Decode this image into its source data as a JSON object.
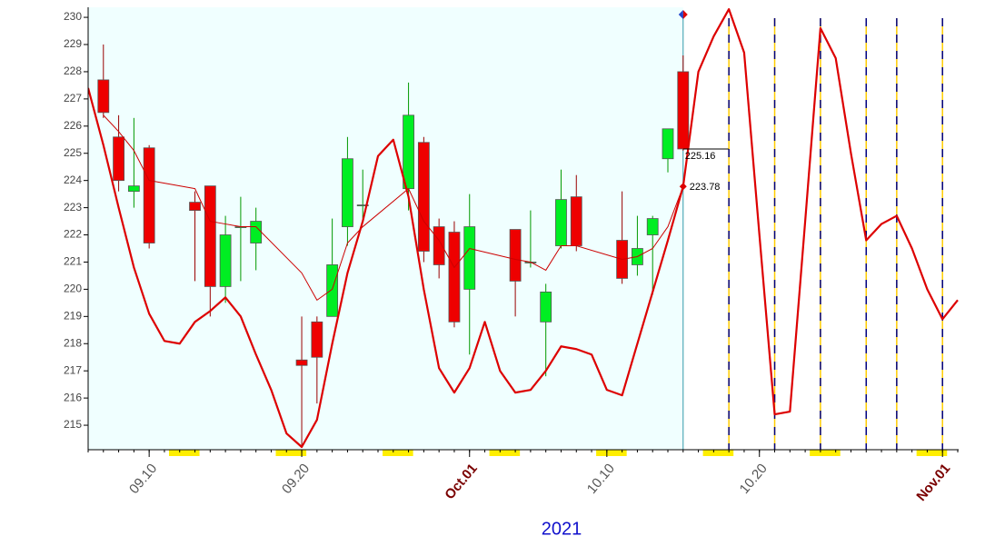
{
  "chart_data": {
    "type": "candlestick",
    "xlabel": "2021",
    "xlim": [
      "2021-09-06",
      "2021-11-02"
    ],
    "xticks": [
      {
        "value": "2021-09-10",
        "label": "09.10"
      },
      {
        "value": "2021-09-20",
        "label": "09.20"
      },
      {
        "value": "2021-10-01",
        "label": "Oct.01"
      },
      {
        "value": "2021-10-10",
        "label": "10.10"
      },
      {
        "value": "2021-10-20",
        "label": "10.20"
      },
      {
        "value": "2021-11-01",
        "label": "Nov.01"
      }
    ],
    "ylim": [
      214.1,
      230.37
    ],
    "yticks": [
      215,
      216,
      217,
      218,
      219,
      220,
      221,
      222,
      223,
      224,
      225,
      226,
      227,
      228,
      229,
      230
    ],
    "cursor": "2021-10-15",
    "vlines": [
      "2021-10-18",
      "2021-10-21",
      "2021-10-24",
      "2021-10-27",
      "2021-10-29",
      "2021-11-01"
    ],
    "up_color": "#00ee22",
    "down_color": "#ee0000",
    "candles": {
      "x": [
        "2021-09-07",
        "2021-09-08",
        "2021-09-09",
        "2021-09-10",
        "2021-09-13",
        "2021-09-14",
        "2021-09-15",
        "2021-09-16",
        "2021-09-17",
        "2021-09-20",
        "2021-09-21",
        "2021-09-22",
        "2021-09-23",
        "2021-09-24",
        "2021-09-27",
        "2021-09-28",
        "2021-09-29",
        "2021-09-30",
        "2021-10-01",
        "2021-10-04",
        "2021-10-05",
        "2021-10-06",
        "2021-10-07",
        "2021-10-08",
        "2021-10-11",
        "2021-10-12",
        "2021-10-13",
        "2021-10-14",
        "2021-10-15"
      ],
      "open": [
        227.7,
        225.6,
        223.6,
        225.2,
        223.2,
        223.8,
        220.1,
        222.3,
        221.7,
        217.4,
        218.8,
        219.0,
        222.3,
        223.1,
        223.7,
        225.4,
        222.3,
        222.1,
        220.0,
        222.2,
        221.0,
        218.8,
        221.6,
        223.4,
        221.8,
        220.9,
        222.0,
        224.8,
        228.0
      ],
      "high": [
        229.0,
        226.4,
        226.3,
        225.3,
        223.6,
        223.8,
        222.7,
        223.4,
        223.0,
        219.0,
        219.0,
        222.6,
        225.6,
        224.4,
        227.6,
        225.6,
        222.6,
        222.5,
        223.5,
        222.2,
        222.9,
        220.2,
        224.4,
        224.2,
        223.6,
        222.7,
        222.7,
        225.9,
        228.6
      ],
      "low": [
        226.3,
        223.6,
        223.0,
        221.5,
        220.3,
        219.0,
        219.5,
        220.3,
        220.7,
        214.2,
        215.8,
        219.0,
        221.6,
        222.6,
        222.9,
        221.0,
        220.4,
        218.6,
        217.6,
        219.0,
        220.8,
        216.8,
        221.5,
        221.4,
        220.2,
        220.5,
        219.8,
        224.3,
        225.1
      ],
      "close": [
        226.5,
        224.0,
        223.8,
        221.7,
        222.9,
        220.1,
        222.0,
        222.3,
        222.5,
        217.2,
        217.5,
        220.9,
        224.8,
        223.1,
        226.4,
        221.4,
        220.9,
        218.8,
        222.3,
        220.3,
        221.0,
        219.9,
        223.3,
        221.6,
        220.4,
        221.5,
        222.6,
        225.9,
        225.16
      ]
    },
    "series": [
      {
        "color": "#cc0000",
        "width": 1,
        "x": [
          "2021-09-07",
          "2021-09-08",
          "2021-09-09",
          "2021-09-10",
          "2021-09-13",
          "2021-09-14",
          "2021-09-15",
          "2021-09-16",
          "2021-09-17",
          "2021-09-20",
          "2021-09-21",
          "2021-09-22",
          "2021-09-23",
          "2021-09-24",
          "2021-09-27",
          "2021-09-28",
          "2021-09-29",
          "2021-09-30",
          "2021-10-01",
          "2021-10-04",
          "2021-10-05",
          "2021-10-06",
          "2021-10-07",
          "2021-10-08",
          "2021-10-11",
          "2021-10-12",
          "2021-10-13",
          "2021-10-14",
          "2021-10-15"
        ],
        "values": [
          226.4,
          225.8,
          225.1,
          224.0,
          223.7,
          222.5,
          222.4,
          222.3,
          222.3,
          220.6,
          219.6,
          220.0,
          221.7,
          222.3,
          223.7,
          222.5,
          221.8,
          220.8,
          221.5,
          221.1,
          221.0,
          220.7,
          221.6,
          221.6,
          221.1,
          221.2,
          221.5,
          222.3,
          223.78
        ]
      },
      {
        "color": "#dd0000",
        "width": 2.2,
        "x": [
          "2021-09-06",
          "2021-09-07",
          "2021-09-08",
          "2021-09-09",
          "2021-09-10",
          "2021-09-11",
          "2021-09-12",
          "2021-09-13",
          "2021-09-14",
          "2021-09-15",
          "2021-09-16",
          "2021-09-17",
          "2021-09-18",
          "2021-09-19",
          "2021-09-20",
          "2021-09-21",
          "2021-09-22",
          "2021-09-23",
          "2021-09-24",
          "2021-09-25",
          "2021-09-26",
          "2021-09-27",
          "2021-09-28",
          "2021-09-29",
          "2021-09-30",
          "2021-10-01",
          "2021-10-02",
          "2021-10-03",
          "2021-10-04",
          "2021-10-05",
          "2021-10-06",
          "2021-10-07",
          "2021-10-08",
          "2021-10-09",
          "2021-10-10",
          "2021-10-11",
          "2021-10-12",
          "2021-10-13",
          "2021-10-14",
          "2021-10-15",
          "2021-10-16",
          "2021-10-17",
          "2021-10-18",
          "2021-10-19",
          "2021-10-20",
          "2021-10-21",
          "2021-10-22",
          "2021-10-23",
          "2021-10-24",
          "2021-10-25",
          "2021-10-26",
          "2021-10-27",
          "2021-10-28",
          "2021-10-29",
          "2021-10-30",
          "2021-10-31",
          "2021-11-01",
          "2021-11-02"
        ],
        "values": [
          227.4,
          225.3,
          223.0,
          220.8,
          219.1,
          218.1,
          218.0,
          218.8,
          219.2,
          219.7,
          219.0,
          217.6,
          216.3,
          214.7,
          214.2,
          215.2,
          218.0,
          220.6,
          222.5,
          224.9,
          225.5,
          223.4,
          220.0,
          217.1,
          216.2,
          217.1,
          218.8,
          217.0,
          216.2,
          216.3,
          217.0,
          217.9,
          217.8,
          217.6,
          216.3,
          216.1,
          218.0,
          219.9,
          221.8,
          223.78,
          228.0,
          229.3,
          230.3,
          228.7,
          222.0,
          215.4,
          215.5,
          222.5,
          229.6,
          228.5,
          225.0,
          221.8,
          222.4,
          222.7,
          221.5,
          220.0,
          218.9,
          219.6
        ]
      }
    ],
    "annotations": [
      {
        "x": "2021-10-15",
        "value": 225.16
      },
      {
        "x": "2021-10-15",
        "value": 223.78
      }
    ]
  }
}
